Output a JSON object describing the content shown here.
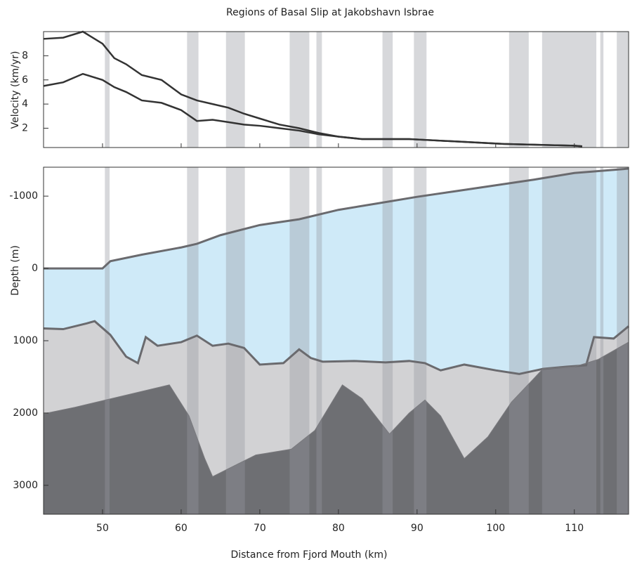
{
  "chart_data": [
    {
      "type": "line",
      "title": "Regions of Basal Slip at Jakobshavn Isbrae",
      "y_label": "Velocity (km/yr)",
      "xlim": [
        42.5,
        116.9
      ],
      "ylim": [
        0.4,
        10
      ],
      "yticks": [
        2,
        4,
        6,
        8
      ],
      "shaded_regions": [
        [
          50.3,
          50.9
        ],
        [
          60.75,
          62.2
        ],
        [
          65.7,
          68.1
        ],
        [
          73.8,
          76.3
        ],
        [
          77.2,
          77.9
        ],
        [
          85.6,
          86.9
        ],
        [
          89.6,
          91.2
        ],
        [
          101.7,
          104.2
        ],
        [
          105.9,
          112.8
        ],
        [
          113.3,
          113.7
        ],
        [
          115.4,
          116.9
        ]
      ],
      "shade_color": "rgba(150,152,160,0.38)",
      "x": [
        42.5,
        45,
        47.5,
        50,
        51.5,
        53,
        55,
        57.5,
        60,
        62,
        64,
        66,
        68,
        70,
        72.5,
        75,
        77.5,
        80,
        83,
        86,
        89,
        92,
        95,
        98,
        101,
        104,
        107,
        110,
        111
      ],
      "series": [
        {
          "color": "#333333",
          "values": [
            9.4,
            9.5,
            10,
            9.0,
            7.8,
            7.3,
            6.4,
            6.0,
            4.8,
            4.3,
            4.0,
            3.7,
            3.2,
            2.8,
            2.3,
            2.0,
            1.6,
            1.3,
            1.1,
            1.1,
            1.1,
            1.0,
            0.9,
            0.8,
            0.7,
            0.65,
            0.6,
            0.55,
            0.5
          ]
        },
        {
          "color": "#333333",
          "values": [
            5.5,
            5.8,
            6.5,
            6.0,
            5.4,
            5.0,
            4.3,
            4.1,
            3.5,
            2.6,
            2.7,
            2.5,
            2.3,
            2.2,
            2.0,
            1.8,
            1.5,
            1.3,
            1.1,
            1.1,
            1.1,
            1.0,
            0.9,
            0.8,
            0.7,
            0.65,
            0.6,
            0.55,
            0.5
          ]
        }
      ]
    },
    {
      "type": "area",
      "y_label": "Depth (m)",
      "x_label": "Distance from Fjord Mouth (km)",
      "xlim": [
        42.5,
        116.9
      ],
      "xticks": [
        50,
        60,
        70,
        80,
        90,
        100,
        110
      ],
      "ylim": [
        3400,
        -1400
      ],
      "yticks": [
        -1000,
        0,
        1000,
        2000,
        3000
      ],
      "series": [
        {
          "color": "#6a6a6e",
          "fill": "#cfeaf8",
          "x": [
            42.5,
            50,
            51,
            55,
            60,
            62,
            65,
            70,
            75,
            80,
            85,
            90,
            95,
            100,
            105,
            110,
            116.9
          ],
          "values": [
            0,
            0,
            -100,
            -190,
            -290,
            -340,
            -460,
            -600,
            -680,
            -810,
            -900,
            -990,
            -1070,
            -1150,
            -1230,
            -1320,
            -1380
          ]
        },
        {
          "color": "#6a6a6e",
          "fill": "#d2d2d4",
          "x": [
            42.5,
            45,
            48,
            49,
            51,
            53,
            54.5,
            55.5,
            57,
            60,
            62,
            64,
            66,
            68,
            70,
            73,
            75,
            76.5,
            78,
            82,
            86,
            89,
            91,
            93,
            96,
            100,
            103,
            106,
            109,
            111.5,
            112.5,
            115,
            116.9
          ],
          "values": [
            830,
            840,
            760,
            730,
            920,
            1220,
            1310,
            950,
            1070,
            1020,
            930,
            1070,
            1040,
            1100,
            1330,
            1310,
            1120,
            1240,
            1290,
            1280,
            1300,
            1280,
            1310,
            1410,
            1330,
            1410,
            1460,
            1390,
            1360,
            1340,
            950,
            970,
            800
          ]
        },
        {
          "color": "#7a7a7e",
          "fill": "#6e6f73",
          "x": [
            42.5,
            46.5,
            58.5,
            61,
            63,
            64,
            66,
            69.5,
            74,
            77,
            80.5,
            83,
            86.5,
            89,
            91,
            93,
            96,
            99,
            102,
            106,
            110,
            113,
            116.9
          ],
          "values": [
            2010,
            1920,
            1610,
            2040,
            2630,
            2880,
            2770,
            2580,
            2500,
            2240,
            1610,
            1800,
            2290,
            2000,
            1820,
            2040,
            2630,
            2330,
            1850,
            1390,
            1360,
            1260,
            1020
          ]
        }
      ]
    }
  ]
}
